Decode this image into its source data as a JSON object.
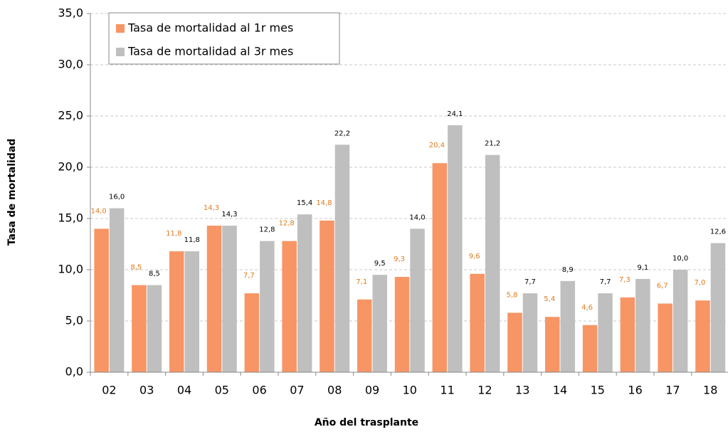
{
  "chart_data": {
    "type": "bar",
    "y_label": "Tasa de mortalidad",
    "x_label": "Año del trasplante",
    "categories": [
      "02",
      "03",
      "04",
      "05",
      "06",
      "07",
      "08",
      "09",
      "10",
      "11",
      "12",
      "13",
      "14",
      "15",
      "16",
      "17",
      "18"
    ],
    "series": [
      {
        "name": "Tasa de mortalidad al 1r mes",
        "color": "#f79565",
        "label_color": "#e07b1e",
        "values": [
          14.0,
          8.5,
          11.8,
          14.3,
          7.7,
          12.8,
          14.8,
          7.1,
          9.3,
          20.4,
          9.6,
          5.8,
          5.4,
          4.6,
          7.3,
          6.7,
          7.0
        ],
        "value_labels": [
          "14,0",
          "8,5",
          "11,8",
          "14,3",
          "7,7",
          "12,8",
          "14,8",
          "7,1",
          "9,3",
          "20,4",
          "9,6",
          "5,8",
          "5,4",
          "4,6",
          "7,3",
          "6,7",
          "7,0"
        ]
      },
      {
        "name": "Tasa de mortalidad al 3r mes",
        "color": "#bfbfbf",
        "label_color": "#000000",
        "values": [
          16.0,
          8.5,
          11.8,
          14.3,
          12.8,
          15.4,
          22.2,
          9.5,
          14.0,
          24.1,
          21.2,
          7.7,
          8.9,
          7.7,
          9.1,
          10.0,
          12.6
        ],
        "value_labels": [
          "16,0",
          "8,5",
          "11,8",
          "14,3",
          "12,8",
          "15,4",
          "22,2",
          "9,5",
          "14,0",
          "24,1",
          "21,2",
          "7,7",
          "8,9",
          "7,7",
          "9,1",
          "10,0",
          "12,6"
        ]
      }
    ],
    "ylim": [
      0,
      35
    ],
    "yticks": [
      {
        "value": 0,
        "label": "0,0"
      },
      {
        "value": 5,
        "label": "5,0"
      },
      {
        "value": 10,
        "label": "10,0"
      },
      {
        "value": 15,
        "label": "15,0"
      },
      {
        "value": 20,
        "label": "20,0"
      },
      {
        "value": 25,
        "label": "25,0"
      },
      {
        "value": 30,
        "label": "30,0"
      },
      {
        "value": 35,
        "label": "35,0"
      }
    ],
    "grid": true,
    "legend": "upper left"
  }
}
